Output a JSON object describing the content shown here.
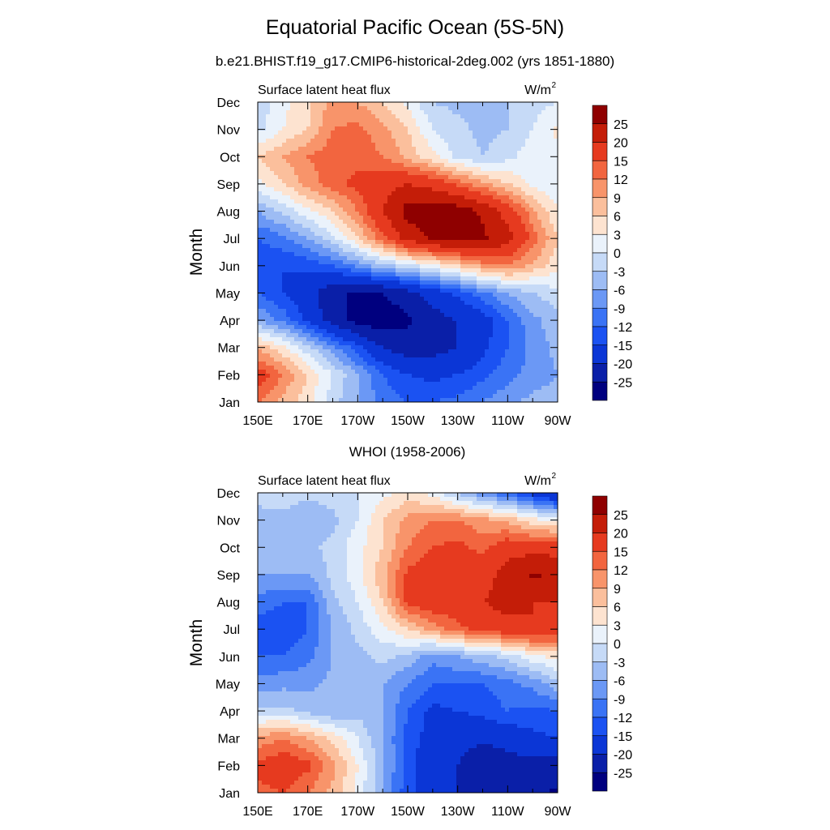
{
  "figure": {
    "title": "Equatorial Pacific Ocean (5S-5N)",
    "top_panel_title": "b.e21.BHIST.f19_g17.CMIP6-historical-2deg.002 (yrs 1851-1880)",
    "bottom_panel_title": "WHOI (1958-2006)"
  },
  "colors": {
    "levels_colors": [
      "#00007f",
      "#0a1fa8",
      "#0b36d6",
      "#1b52f2",
      "#3a73f5",
      "#6b98f5",
      "#9dbcf4",
      "#c6daf7",
      "#eaf2fb",
      "#fde3d0",
      "#fbbf9c",
      "#f8946a",
      "#f2653f",
      "#e63a1f",
      "#c41d08",
      "#8f0000"
    ],
    "grid_background": "#ffffff"
  },
  "chart_data": [
    {
      "type": "heatmap",
      "panel": "model",
      "left_label": "Surface latent heat flux",
      "right_label": "W/m",
      "right_label_sup": "2",
      "ylabel": "Month",
      "x_tick_labels": [
        "150E",
        "170E",
        "170W",
        "150W",
        "130W",
        "110W",
        "90W"
      ],
      "y_tick_labels": [
        "Jan",
        "Feb",
        "Mar",
        "Apr",
        "May",
        "Jun",
        "Jul",
        "Aug",
        "Sep",
        "Oct",
        "Nov",
        "Dec"
      ],
      "colorbar_levels": [
        -25,
        -20,
        -15,
        -12,
        -9,
        -6,
        -3,
        0,
        3,
        6,
        9,
        12,
        15,
        20,
        25
      ],
      "colorbar_labels": [
        "25",
        "20",
        "15",
        "12",
        "9",
        "6",
        "3",
        "0",
        "-3",
        "-6",
        "-9",
        "-12",
        "-15",
        "-20",
        "-25"
      ],
      "x": [
        150,
        160,
        170,
        180,
        190,
        200,
        210,
        220,
        230,
        240,
        250,
        260,
        270
      ],
      "y": [
        1,
        2,
        3,
        4,
        5,
        6,
        7,
        8,
        9,
        10,
        11,
        12
      ],
      "z": [
        [
          12,
          8,
          4,
          -2,
          -6,
          -10,
          -12,
          -12,
          -11,
          -9,
          -7,
          -5,
          -4
        ],
        [
          18,
          12,
          6,
          0,
          -6,
          -12,
          -15,
          -16,
          -15,
          -13,
          -10,
          -8,
          -6
        ],
        [
          8,
          4,
          -2,
          -8,
          -14,
          -20,
          -23,
          -22,
          -20,
          -16,
          -12,
          -8,
          -5
        ],
        [
          -6,
          -10,
          -16,
          -22,
          -27,
          -28,
          -26,
          -22,
          -20,
          -17,
          -12,
          -7,
          -4
        ],
        [
          -12,
          -15,
          -18,
          -24,
          -26,
          -25,
          -22,
          -18,
          -14,
          -10,
          -6,
          -3,
          -1
        ],
        [
          -14,
          -15,
          -14,
          -12,
          -8,
          -4,
          -1,
          2,
          6,
          10,
          12,
          8,
          4
        ],
        [
          -12,
          -10,
          -6,
          -1,
          6,
          14,
          22,
          26,
          27,
          26,
          22,
          14,
          6
        ],
        [
          -6,
          -2,
          2,
          6,
          12,
          20,
          27,
          28,
          28,
          24,
          18,
          10,
          3
        ],
        [
          2,
          6,
          10,
          14,
          16,
          18,
          20,
          18,
          14,
          10,
          6,
          2,
          1
        ],
        [
          6,
          9,
          12,
          14,
          14,
          12,
          8,
          4,
          -1,
          -3,
          -1,
          2,
          2
        ],
        [
          -1,
          3,
          6,
          12,
          13,
          10,
          6,
          0,
          -2,
          -4,
          -3,
          0,
          4
        ],
        [
          -2,
          2,
          5,
          10,
          9,
          6,
          2,
          -3,
          -4,
          -4,
          -3,
          -1,
          0
        ]
      ]
    },
    {
      "type": "heatmap",
      "panel": "observations",
      "left_label": "Surface latent heat flux",
      "right_label": "W/m",
      "right_label_sup": "2",
      "ylabel": "Month",
      "x_tick_labels": [
        "150E",
        "170E",
        "170W",
        "150W",
        "130W",
        "110W",
        "90W"
      ],
      "y_tick_labels": [
        "Jan",
        "Feb",
        "Mar",
        "Apr",
        "May",
        "Jun",
        "Jul",
        "Aug",
        "Sep",
        "Oct",
        "Nov",
        "Dec"
      ],
      "colorbar_levels": [
        -25,
        -20,
        -15,
        -12,
        -9,
        -6,
        -3,
        0,
        3,
        6,
        9,
        12,
        15,
        20,
        25
      ],
      "colorbar_labels": [
        "25",
        "20",
        "15",
        "12",
        "9",
        "6",
        "3",
        "0",
        "-3",
        "-6",
        "-9",
        "-12",
        "-15",
        "-20",
        "-25"
      ],
      "x": [
        150,
        160,
        170,
        180,
        190,
        200,
        210,
        220,
        230,
        240,
        250,
        260,
        270
      ],
      "y": [
        1,
        2,
        3,
        4,
        5,
        6,
        7,
        8,
        9,
        10,
        11,
        12
      ],
      "z": [
        [
          14,
          15,
          12,
          8,
          2,
          -6,
          -14,
          -17,
          -20,
          -22,
          -22,
          -24,
          -26
        ],
        [
          16,
          18,
          16,
          10,
          3,
          -5,
          -14,
          -18,
          -20,
          -24,
          -22,
          -22,
          -22
        ],
        [
          10,
          12,
          9,
          5,
          0,
          -6,
          -13,
          -17,
          -18,
          -19,
          -18,
          -16,
          -15
        ],
        [
          -2,
          -2,
          -4,
          -6,
          -4,
          -6,
          -12,
          -16,
          -15,
          -14,
          -12,
          -13,
          -12
        ],
        [
          -8,
          -7,
          -7,
          -5,
          -3,
          -6,
          -9,
          -12,
          -12,
          -12,
          -10,
          -8,
          -4
        ],
        [
          -12,
          -12,
          -10,
          -6,
          -4,
          -2,
          -4,
          -8,
          -6,
          -4,
          -2,
          2,
          4
        ],
        [
          -14,
          -14,
          -12,
          -6,
          -2,
          2,
          6,
          10,
          14,
          16,
          18,
          20,
          18
        ],
        [
          -10,
          -12,
          -12,
          -4,
          0,
          6,
          16,
          18,
          18,
          20,
          22,
          20,
          20
        ],
        [
          -6,
          -6,
          -6,
          -2,
          2,
          8,
          16,
          18,
          16,
          18,
          22,
          26,
          24
        ],
        [
          -4,
          -6,
          -4,
          -2,
          2,
          6,
          12,
          15,
          16,
          14,
          18,
          18,
          18
        ],
        [
          -4,
          -4,
          -6,
          -4,
          0,
          6,
          10,
          12,
          12,
          10,
          8,
          4,
          2
        ],
        [
          -2,
          -1,
          -2,
          -1,
          0,
          2,
          4,
          2,
          -4,
          -8,
          -12,
          -16,
          -22
        ]
      ]
    }
  ]
}
